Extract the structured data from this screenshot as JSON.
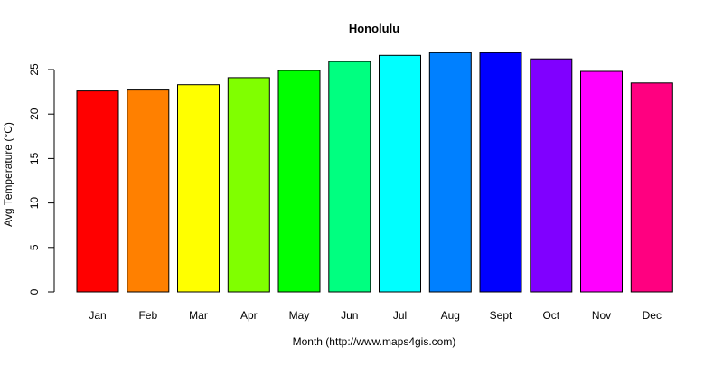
{
  "chart_data": {
    "type": "bar",
    "title": "Honolulu",
    "xlabel": "Month (http://www.maps4gis.com)",
    "ylabel": "Avg Temperature (°C)",
    "categories": [
      "Jan",
      "Feb",
      "Mar",
      "Apr",
      "May",
      "Jun",
      "Jul",
      "Aug",
      "Sept",
      "Oct",
      "Nov",
      "Dec"
    ],
    "values": [
      22.6,
      22.7,
      23.3,
      24.1,
      24.9,
      25.9,
      26.6,
      26.9,
      26.9,
      26.2,
      24.8,
      23.5
    ],
    "colors": [
      "#FF0000",
      "#FF8000",
      "#FFFF00",
      "#80FF00",
      "#00FF00",
      "#00FF80",
      "#00FFFF",
      "#0080FF",
      "#0000FF",
      "#8000FF",
      "#FF00FF",
      "#FF0080"
    ],
    "yticks": [
      "0",
      "5",
      "10",
      "15",
      "20",
      "25"
    ],
    "ylim": [
      0,
      25
    ],
    "grid": false,
    "legend": "none"
  }
}
